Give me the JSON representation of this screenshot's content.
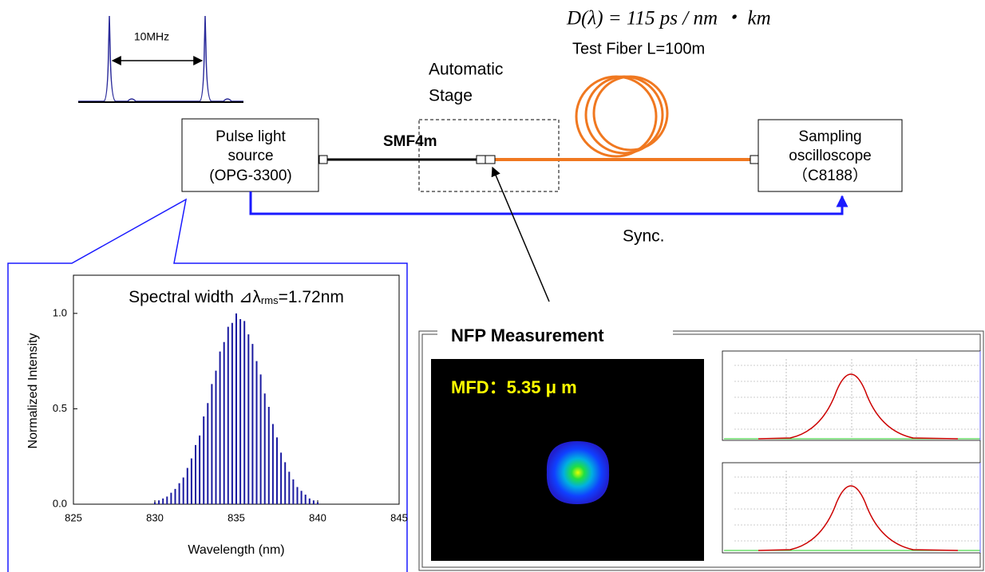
{
  "diagram": {
    "formula": "D(λ) = 115 ps / nm ・ km",
    "test_fiber": "Test Fiber  L=100m",
    "stage": [
      "Automatic",
      "Stage"
    ],
    "source": [
      "Pulse light",
      "source",
      "(OPG-3300)"
    ],
    "smf": "SMF4m",
    "scope": [
      "Sampling",
      "oscilloscope",
      "（C8188）"
    ],
    "sync": "Sync.",
    "spacing": "10MHz",
    "nfp_title": "NFP Measurement",
    "mfd": "MFD：5.35 μ m"
  },
  "chart_data": {
    "type": "spectrum",
    "title": {
      "prefix": "Spectral width ⊿λ",
      "subscript": "rms",
      "suffix": "=1.72nm"
    },
    "x_label": "Wavelength (nm)",
    "y_label": "Normalized Intensity",
    "color": "#1a1aa0",
    "xlim": [
      825,
      845
    ],
    "xticks": [
      825,
      830,
      835,
      840,
      845
    ],
    "ylim": [
      0,
      1.2
    ],
    "yticks": [
      {
        "value": 0,
        "label": "0.0"
      },
      0.5,
      {
        "value": 1,
        "label": "1.0"
      }
    ],
    "x": [
      830,
      830.25,
      830.5,
      830.75,
      831,
      831.25,
      831.5,
      831.75,
      832,
      832.25,
      832.5,
      832.75,
      833,
      833.25,
      833.5,
      833.75,
      834,
      834.25,
      834.5,
      834.75,
      835,
      835.25,
      835.5,
      835.75,
      836,
      836.25,
      836.5,
      836.75,
      837,
      837.25,
      837.5,
      837.75,
      838,
      838.25,
      838.5,
      838.75,
      839,
      839.25,
      839.5,
      839.75,
      840
    ],
    "values": [
      0.01,
      0.02,
      0.03,
      0.04,
      0.06,
      0.08,
      0.11,
      0.14,
      0.19,
      0.24,
      0.31,
      0.36,
      0.46,
      0.53,
      0.63,
      0.7,
      0.8,
      0.85,
      0.93,
      0.95,
      1.0,
      0.97,
      0.96,
      0.89,
      0.84,
      0.75,
      0.68,
      0.58,
      0.51,
      0.42,
      0.35,
      0.27,
      0.22,
      0.17,
      0.13,
      0.09,
      0.07,
      0.05,
      0.03,
      0.02,
      0.01
    ]
  }
}
